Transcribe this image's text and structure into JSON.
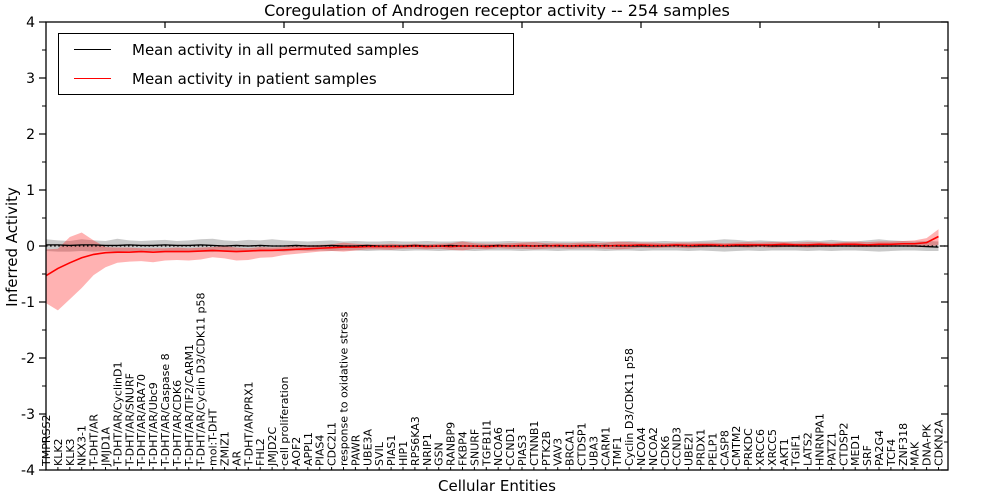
{
  "figure": {
    "title": "Coregulation of Androgen receptor activity -- 254 samples",
    "xlabel": "Cellular Entities",
    "ylabel": "Inferred Activity"
  },
  "legend": {
    "position": "upper left",
    "items": [
      {
        "label": "Mean activity in all permuted samples",
        "color": "#000000"
      },
      {
        "label": "Mean activity in patient samples",
        "color": "#ff0000"
      }
    ]
  },
  "chart_data": {
    "type": "line",
    "title": "Coregulation of Androgen receptor activity -- 254 samples",
    "xlabel": "Cellular Entities",
    "ylabel": "Inferred Activity",
    "ylim": [
      -4,
      4
    ],
    "yticks": [
      4,
      3,
      2,
      1,
      0,
      -1,
      -2,
      -3,
      -4
    ],
    "y_minor_tick_step": 0.5,
    "x_major_tick_interval": 10,
    "grid": false,
    "zero_line_style": "dotted",
    "legend_position": "upper left",
    "sample_count_shown_in_title": 254,
    "categories": [
      "TMPRSS2",
      "KLK2",
      "KLK3",
      "NKX3-1",
      "T-DHT/AR",
      "JMJD1A",
      "T-DHT/AR/CyclinD1",
      "T-DHT/AR/SNURF",
      "T-DHT/AR/ARA70",
      "T-DHT/AR/Ubc9",
      "T-DHT/AR/Caspase 8",
      "T-DHT/AR/CDK6",
      "T-DHT/AR/TIF2/CARM1",
      "T-DHT/AR/Cyclin D3/CDK11 p58",
      "mol:T-DHT",
      "ZMIZ1",
      "AR",
      "T-DHT/AR/PRX1",
      "FHL2",
      "JMJD2C",
      "cell proliferation",
      "AOF2",
      "APPL1",
      "PIAS4",
      "CDC2L1",
      "response to oxidative stress",
      "PAWR",
      "UBE3A",
      "SVIL",
      "PIAS1",
      "HIP1",
      "RPS6KA3",
      "NRIP1",
      "GSN",
      "RANBP9",
      "FKBP4",
      "SNURF",
      "TGFB1I1",
      "NCOA6",
      "CCND1",
      "PIAS3",
      "CTNNB1",
      "PTK2B",
      "VAV3",
      "BRCA1",
      "CTDSP1",
      "UBA3",
      "CARM1",
      "TMF1",
      "Cyclin D3/CDK11 p58",
      "NCOA4",
      "NCOA2",
      "CDK6",
      "CCND3",
      "UBE2I",
      "PRDX1",
      "PELP1",
      "CASP8",
      "CMTM2",
      "PRKDC",
      "XRCC6",
      "XRCC5",
      "AKT1",
      "TGIF1",
      "LATS2",
      "HNRNPA1",
      "PATZ1",
      "CTDSP2",
      "MED1",
      "SRF",
      "PA2G4",
      "TCF4",
      "ZNF318",
      "MAK",
      "DNA-PK",
      "CDKN2A"
    ],
    "series": [
      {
        "name": "Mean activity in all permuted samples",
        "color": "#000000",
        "line_width": 1.3,
        "band_color": "#888888",
        "band_opacity": 0.45,
        "values": [
          0.02,
          0.02,
          0.01,
          0.02,
          0.02,
          0.01,
          0.01,
          0.02,
          0.01,
          0.01,
          0.02,
          0.01,
          0.01,
          0.02,
          0.01,
          0.0,
          0.01,
          0.0,
          0.01,
          0.0,
          0.0,
          0.01,
          0.0,
          0.0,
          0.01,
          0.0,
          0.0,
          0.01,
          0.0,
          0.0,
          0.0,
          0.01,
          0.0,
          0.0,
          0.01,
          0.0,
          0.0,
          0.0,
          0.01,
          0.0,
          0.0,
          0.0,
          0.01,
          0.0,
          0.0,
          0.0,
          0.0,
          0.01,
          0.0,
          0.0,
          0.0,
          0.0,
          0.0,
          0.01,
          0.0,
          0.0,
          0.0,
          0.0,
          0.0,
          0.0,
          0.01,
          0.0,
          0.0,
          0.0,
          0.0,
          0.0,
          0.0,
          0.0,
          0.0,
          0.0,
          0.0,
          0.0,
          0.0,
          0.0,
          -0.01,
          -0.02
        ],
        "band_hi": [
          0.12,
          0.1,
          0.09,
          0.12,
          0.1,
          0.09,
          0.13,
          0.1,
          0.09,
          0.1,
          0.11,
          0.09,
          0.1,
          0.12,
          0.13,
          0.1,
          0.09,
          0.11,
          0.1,
          0.12,
          0.1,
          0.09,
          0.08,
          0.09,
          0.1,
          0.08,
          0.09,
          0.08,
          0.08,
          0.09,
          0.08,
          0.08,
          0.09,
          0.08,
          0.08,
          0.09,
          0.08,
          0.08,
          0.08,
          0.09,
          0.08,
          0.08,
          0.09,
          0.08,
          0.08,
          0.08,
          0.09,
          0.08,
          0.08,
          0.09,
          0.08,
          0.08,
          0.09,
          0.08,
          0.08,
          0.09,
          0.1,
          0.12,
          0.11,
          0.09,
          0.1,
          0.09,
          0.08,
          0.09,
          0.1,
          0.09,
          0.11,
          0.09,
          0.08,
          0.1,
          0.12,
          0.1,
          0.09,
          0.08,
          0.09,
          0.08
        ],
        "band_lo": [
          -0.09,
          -0.1,
          -0.1,
          -0.09,
          -0.1,
          -0.09,
          -0.1,
          -0.09,
          -0.1,
          -0.09,
          -0.09,
          -0.1,
          -0.09,
          -0.1,
          -0.11,
          -0.09,
          -0.1,
          -0.09,
          -0.1,
          -0.09,
          -0.1,
          -0.08,
          -0.09,
          -0.08,
          -0.09,
          -0.08,
          -0.08,
          -0.09,
          -0.08,
          -0.08,
          -0.09,
          -0.08,
          -0.08,
          -0.09,
          -0.08,
          -0.08,
          -0.09,
          -0.08,
          -0.08,
          -0.08,
          -0.09,
          -0.08,
          -0.08,
          -0.09,
          -0.08,
          -0.08,
          -0.08,
          -0.09,
          -0.08,
          -0.08,
          -0.09,
          -0.08,
          -0.08,
          -0.08,
          -0.09,
          -0.08,
          -0.09,
          -0.1,
          -0.09,
          -0.08,
          -0.09,
          -0.08,
          -0.08,
          -0.08,
          -0.09,
          -0.08,
          -0.09,
          -0.08,
          -0.08,
          -0.09,
          -0.1,
          -0.09,
          -0.08,
          -0.08,
          -0.09,
          -0.09
        ]
      },
      {
        "name": "Mean activity in patient samples",
        "color": "#ff0000",
        "line_width": 1.6,
        "band_color": "#ff0000",
        "band_opacity": 0.3,
        "values": [
          -0.53,
          -0.4,
          -0.3,
          -0.21,
          -0.15,
          -0.12,
          -0.11,
          -0.11,
          -0.1,
          -0.11,
          -0.1,
          -0.1,
          -0.1,
          -0.09,
          -0.08,
          -0.09,
          -0.1,
          -0.09,
          -0.08,
          -0.08,
          -0.07,
          -0.06,
          -0.05,
          -0.04,
          -0.03,
          -0.02,
          -0.02,
          -0.01,
          -0.01,
          -0.01,
          -0.01,
          0.0,
          -0.01,
          0.0,
          -0.01,
          0.0,
          0.0,
          -0.01,
          0.0,
          0.0,
          0.01,
          0.0,
          0.0,
          0.01,
          0.0,
          0.01,
          0.01,
          0.0,
          0.01,
          0.01,
          0.02,
          0.01,
          0.01,
          0.02,
          0.01,
          0.02,
          0.02,
          0.01,
          0.02,
          0.02,
          0.02,
          0.02,
          0.03,
          0.02,
          0.02,
          0.03,
          0.02,
          0.03,
          0.03,
          0.02,
          0.03,
          0.03,
          0.04,
          0.04,
          0.06,
          0.17
        ],
        "band_hi": [
          -0.06,
          -0.05,
          0.16,
          0.24,
          0.1,
          -0.02,
          -0.03,
          -0.03,
          -0.04,
          -0.04,
          -0.04,
          -0.03,
          -0.04,
          -0.03,
          -0.02,
          0.0,
          -0.03,
          -0.04,
          -0.02,
          -0.03,
          -0.02,
          0.02,
          0.01,
          0.02,
          0.03,
          0.06,
          0.04,
          0.03,
          0.03,
          0.04,
          0.03,
          0.04,
          0.03,
          0.04,
          0.05,
          0.08,
          0.05,
          0.04,
          0.04,
          0.05,
          0.06,
          0.07,
          0.05,
          0.05,
          0.05,
          0.06,
          0.05,
          0.06,
          0.08,
          0.07,
          0.06,
          0.06,
          0.05,
          0.06,
          0.06,
          0.06,
          0.06,
          0.05,
          0.06,
          0.07,
          0.06,
          0.07,
          0.07,
          0.06,
          0.07,
          0.07,
          0.06,
          0.07,
          0.08,
          0.07,
          0.08,
          0.08,
          0.09,
          0.1,
          0.14,
          0.3
        ],
        "band_lo": [
          -1.02,
          -1.15,
          -0.95,
          -0.75,
          -0.52,
          -0.38,
          -0.3,
          -0.28,
          -0.27,
          -0.29,
          -0.26,
          -0.25,
          -0.26,
          -0.24,
          -0.2,
          -0.22,
          -0.26,
          -0.25,
          -0.21,
          -0.2,
          -0.16,
          -0.14,
          -0.12,
          -0.1,
          -0.09,
          -0.1,
          -0.08,
          -0.06,
          -0.06,
          -0.07,
          -0.05,
          -0.05,
          -0.06,
          -0.05,
          -0.07,
          -0.08,
          -0.05,
          -0.06,
          -0.04,
          -0.05,
          -0.05,
          -0.06,
          -0.05,
          -0.04,
          -0.05,
          -0.04,
          -0.04,
          -0.05,
          -0.06,
          -0.05,
          -0.03,
          -0.04,
          -0.03,
          -0.03,
          -0.04,
          -0.03,
          -0.02,
          -0.03,
          -0.02,
          -0.03,
          -0.02,
          -0.03,
          -0.02,
          -0.02,
          -0.03,
          -0.02,
          -0.02,
          -0.01,
          -0.02,
          -0.02,
          -0.02,
          -0.01,
          -0.01,
          -0.02,
          -0.02,
          0.02
        ]
      }
    ]
  }
}
